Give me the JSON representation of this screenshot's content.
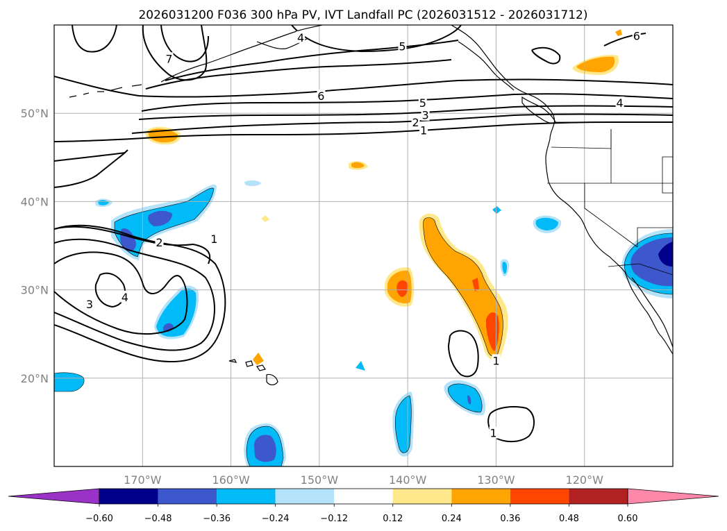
{
  "title": "2026031200 F036 300 hPa PV, IVT Landfall PC (2026031512 - 2026031712)",
  "map": {
    "lon_range": [
      -180,
      -110
    ],
    "lat_range": [
      10,
      60
    ],
    "lon_ticks": [
      {
        "value": -170,
        "label": "170°W"
      },
      {
        "value": -160,
        "label": "160°W"
      },
      {
        "value": -150,
        "label": "150°W"
      },
      {
        "value": -140,
        "label": "140°W"
      },
      {
        "value": -130,
        "label": "130°W"
      },
      {
        "value": -120,
        "label": "120°W"
      }
    ],
    "lat_ticks": [
      {
        "value": 20,
        "label": "20°N"
      },
      {
        "value": 30,
        "label": "30°N"
      },
      {
        "value": 40,
        "label": "40°N"
      },
      {
        "value": 50,
        "label": "50°N"
      }
    ],
    "gridlines": true,
    "contour_labels": [
      {
        "text": "6",
        "lon": -149.8,
        "lat": 52.0
      },
      {
        "text": "5",
        "lon": -138.3,
        "lat": 51.2
      },
      {
        "text": "3",
        "lon": -138.0,
        "lat": 49.8
      },
      {
        "text": "2",
        "lon": -139.1,
        "lat": 49.0
      },
      {
        "text": "1",
        "lon": -138.2,
        "lat": 48.1
      },
      {
        "text": "5",
        "lon": -140.6,
        "lat": 57.6
      },
      {
        "text": "4",
        "lon": -152.1,
        "lat": 58.6
      },
      {
        "text": "7",
        "lon": -167.0,
        "lat": 56.2
      },
      {
        "text": "6",
        "lon": -114.1,
        "lat": 58.8
      },
      {
        "text": "4",
        "lon": -116.0,
        "lat": 51.2
      },
      {
        "text": "2",
        "lon": -168.1,
        "lat": 35.4
      },
      {
        "text": "1",
        "lon": -161.9,
        "lat": 35.8
      },
      {
        "text": "4",
        "lon": -172.0,
        "lat": 29.2
      },
      {
        "text": "3",
        "lon": -176.0,
        "lat": 28.4
      },
      {
        "text": "1",
        "lon": -130.0,
        "lat": 22.0
      },
      {
        "text": "1",
        "lon": -130.3,
        "lat": 13.8
      }
    ]
  },
  "colorbar": {
    "levels": [
      -0.6,
      -0.48,
      -0.36,
      -0.24,
      -0.12,
      0.12,
      0.24,
      0.36,
      0.48,
      0.6
    ],
    "tick_labels": [
      "−0.60",
      "−0.48",
      "−0.36",
      "−0.24",
      "−0.12",
      "0.12",
      "0.24",
      "0.36",
      "0.48",
      "0.60"
    ],
    "colors": [
      "#9b32c8",
      "#00008c",
      "#3c58cc",
      "#00bbf8",
      "#b4e2f8",
      "#ffffff",
      "#ffe88c",
      "#ffa400",
      "#ff4600",
      "#b22222",
      "#ff88aa"
    ]
  }
}
